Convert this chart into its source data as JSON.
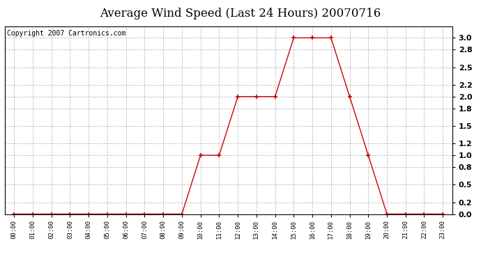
{
  "title": "Average Wind Speed (Last 24 Hours) 20070716",
  "copyright": "Copyright 2007 Cartronics.com",
  "hours": [
    0,
    1,
    2,
    3,
    4,
    5,
    6,
    7,
    8,
    9,
    10,
    11,
    12,
    13,
    14,
    15,
    16,
    17,
    18,
    19,
    20,
    21,
    22,
    23
  ],
  "values": [
    0.0,
    0.0,
    0.0,
    0.0,
    0.0,
    0.0,
    0.0,
    0.0,
    0.0,
    0.0,
    1.0,
    1.0,
    2.0,
    2.0,
    2.0,
    3.0,
    3.0,
    3.0,
    2.0,
    1.0,
    0.0,
    0.0,
    0.0,
    0.0
  ],
  "xlabels": [
    "00:00",
    "01:00",
    "02:00",
    "03:00",
    "04:00",
    "05:00",
    "06:00",
    "07:00",
    "08:00",
    "09:00",
    "10:00",
    "11:00",
    "12:00",
    "13:00",
    "14:00",
    "15:00",
    "16:00",
    "17:00",
    "18:00",
    "19:00",
    "20:00",
    "21:00",
    "22:00",
    "23:00"
  ],
  "ylim": [
    0.0,
    3.2
  ],
  "yticks": [
    0.0,
    0.2,
    0.5,
    0.8,
    1.0,
    1.2,
    1.5,
    1.8,
    2.0,
    2.2,
    2.5,
    2.8,
    3.0
  ],
  "line_color": "#cc0000",
  "marker_color": "#cc0000",
  "grid_color": "#bbbbbb",
  "bg_color": "#ffffff",
  "plot_bg_color": "#ffffff",
  "title_fontsize": 12,
  "copyright_fontsize": 7
}
